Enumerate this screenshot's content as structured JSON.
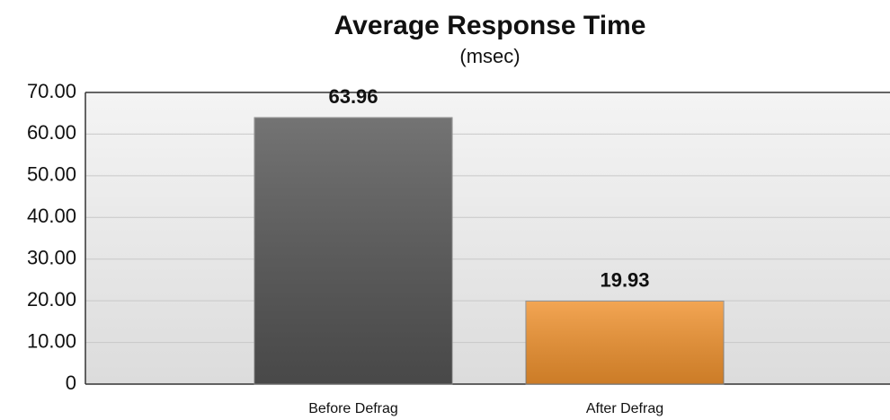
{
  "chart_data": {
    "type": "bar",
    "title": "Average Response Time",
    "subtitle": "(msec)",
    "categories": [
      "Before Defrag",
      "After Defrag"
    ],
    "values": [
      63.96,
      19.93
    ],
    "colors": [
      "#555555",
      "#f0922e"
    ],
    "ylim": [
      0,
      70
    ],
    "yticks": [
      0,
      {
        "value": 10,
        "label": "10.00"
      },
      {
        "value": 20,
        "label": "20.00"
      },
      {
        "value": 30,
        "label": "30.00"
      },
      {
        "value": 40,
        "label": "40.00"
      },
      {
        "value": 50,
        "label": "50.00"
      },
      {
        "value": 60,
        "label": "60.00"
      },
      {
        "value": 70,
        "label": "70.00"
      }
    ],
    "grid": true
  }
}
